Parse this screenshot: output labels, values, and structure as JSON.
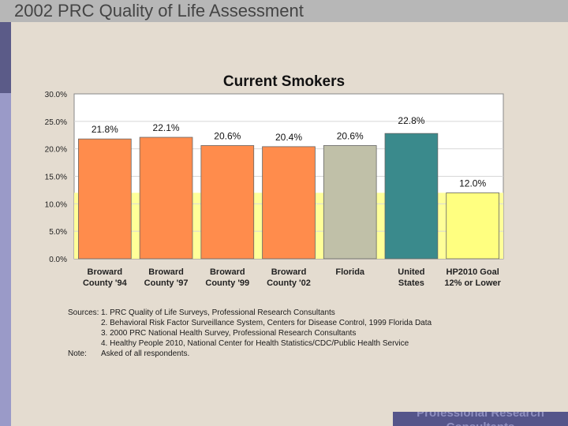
{
  "slide": {
    "title": "2002 PRC Quality of Life Assessment",
    "footer": "Professional Research Consultants"
  },
  "colors": {
    "background": "#e4dcd0",
    "plot_background": "#ffffff",
    "target_band": "#ffff99",
    "broward": "#ff8c4c",
    "florida": "#c0c0a8",
    "united_states": "#3a8a8c",
    "goal": "#ffff80"
  },
  "chart_data": {
    "type": "bar",
    "title": "Current Smokers",
    "categories": [
      [
        "Broward",
        "County '94"
      ],
      [
        "Broward",
        "County '97"
      ],
      [
        "Broward",
        "County '99"
      ],
      [
        "Broward",
        "County '02"
      ],
      [
        "Florida",
        ""
      ],
      [
        "United",
        "States"
      ],
      [
        "HP2010 Goal",
        "12% or Lower"
      ]
    ],
    "values": [
      21.8,
      22.1,
      20.6,
      20.4,
      20.6,
      22.8,
      12.0
    ],
    "value_labels": [
      "21.8%",
      "22.1%",
      "20.6%",
      "20.4%",
      "20.6%",
      "22.8%",
      "12.0%"
    ],
    "bar_colors": [
      "#ff8c4c",
      "#ff8c4c",
      "#ff8c4c",
      "#ff8c4c",
      "#c0c0a8",
      "#3a8a8c",
      "#ffff80"
    ],
    "yticks": [
      "0.0%",
      "5.0%",
      "10.0%",
      "15.0%",
      "20.0%",
      "25.0%",
      "30.0%"
    ],
    "ylim": [
      0,
      30
    ],
    "target_line": 12.0,
    "xlabel": "",
    "ylabel": ""
  },
  "sources": {
    "label": "Sources:",
    "items": [
      "1. PRC Quality of Life Surveys, Professional Research Consultants",
      "2. Behavioral Risk Factor Surveillance System, Centers for Disease Control, 1999 Florida Data",
      "3. 2000 PRC National Health Survey, Professional Research Consultants",
      "4. Healthy People 2010, National Center for Health Statistics/CDC/Public Health Service"
    ],
    "note_label": "Note:",
    "note_text": "Asked of all respondents."
  }
}
